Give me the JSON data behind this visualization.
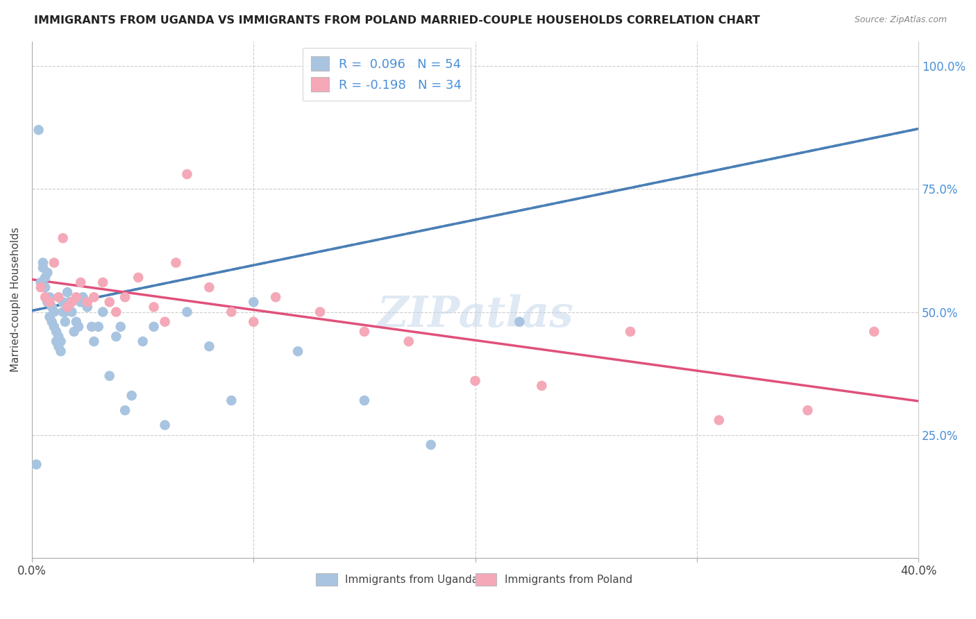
{
  "title": "IMMIGRANTS FROM UGANDA VS IMMIGRANTS FROM POLAND MARRIED-COUPLE HOUSEHOLDS CORRELATION CHART",
  "source": "Source: ZipAtlas.com",
  "ylabel": "Married-couple Households",
  "x_min": 0.0,
  "x_max": 0.4,
  "y_min": 0.0,
  "y_max": 1.05,
  "uganda_color": "#a8c4e0",
  "poland_color": "#f4a8b8",
  "uganda_R": 0.096,
  "uganda_N": 54,
  "poland_R": -0.198,
  "poland_N": 34,
  "trend_uganda_color": "#4a7fb5",
  "trend_uganda_dash": true,
  "trend_poland_color": "#e0507a",
  "trend_poland_dash": false,
  "legend_label_uganda": "Immigrants from Uganda",
  "legend_label_poland": "Immigrants from Poland",
  "watermark": "ZIPatlas",
  "right_tick_color": "#4a90d9",
  "uganda_points_x": [
    0.002,
    0.003,
    0.004,
    0.005,
    0.005,
    0.006,
    0.006,
    0.007,
    0.007,
    0.008,
    0.008,
    0.009,
    0.009,
    0.01,
    0.01,
    0.011,
    0.011,
    0.012,
    0.012,
    0.013,
    0.013,
    0.014,
    0.014,
    0.015,
    0.015,
    0.016,
    0.017,
    0.018,
    0.019,
    0.02,
    0.021,
    0.022,
    0.023,
    0.025,
    0.027,
    0.028,
    0.03,
    0.032,
    0.035,
    0.038,
    0.04,
    0.042,
    0.045,
    0.05,
    0.055,
    0.06,
    0.07,
    0.08,
    0.09,
    0.1,
    0.12,
    0.15,
    0.18,
    0.22
  ],
  "uganda_points_y": [
    0.19,
    0.87,
    0.56,
    0.59,
    0.6,
    0.55,
    0.57,
    0.52,
    0.58,
    0.49,
    0.53,
    0.48,
    0.51,
    0.47,
    0.5,
    0.44,
    0.46,
    0.43,
    0.45,
    0.42,
    0.44,
    0.5,
    0.52,
    0.48,
    0.5,
    0.54,
    0.52,
    0.5,
    0.46,
    0.48,
    0.47,
    0.52,
    0.53,
    0.51,
    0.47,
    0.44,
    0.47,
    0.5,
    0.37,
    0.45,
    0.47,
    0.3,
    0.33,
    0.44,
    0.47,
    0.27,
    0.5,
    0.43,
    0.32,
    0.52,
    0.42,
    0.32,
    0.23,
    0.48
  ],
  "poland_points_x": [
    0.004,
    0.006,
    0.008,
    0.01,
    0.012,
    0.014,
    0.016,
    0.018,
    0.02,
    0.022,
    0.025,
    0.028,
    0.032,
    0.035,
    0.038,
    0.042,
    0.048,
    0.055,
    0.06,
    0.065,
    0.07,
    0.08,
    0.09,
    0.1,
    0.11,
    0.13,
    0.15,
    0.17,
    0.2,
    0.23,
    0.27,
    0.31,
    0.35,
    0.38
  ],
  "poland_points_y": [
    0.55,
    0.53,
    0.52,
    0.6,
    0.53,
    0.65,
    0.51,
    0.52,
    0.53,
    0.56,
    0.52,
    0.53,
    0.56,
    0.52,
    0.5,
    0.53,
    0.57,
    0.51,
    0.48,
    0.6,
    0.78,
    0.55,
    0.5,
    0.48,
    0.53,
    0.5,
    0.46,
    0.44,
    0.36,
    0.35,
    0.46,
    0.28,
    0.3,
    0.46
  ]
}
